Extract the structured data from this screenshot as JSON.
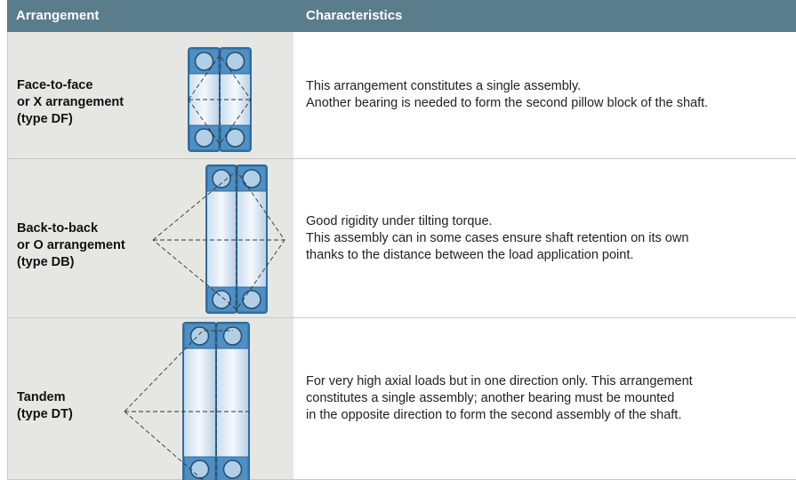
{
  "header": [
    "Arrangement",
    "Characteristics"
  ],
  "rows": [
    {
      "arrangement": [
        "Face-to-face",
        "or X arrangement",
        "(type DF)"
      ],
      "characteristics": [
        "This arrangement constitutes a single assembly.",
        "Another bearing is needed to form the second pillow block of the shaft."
      ]
    },
    {
      "arrangement": [
        "Back-to-back",
        "or O arrangement",
        "(type DB)"
      ],
      "characteristics": [
        "Good rigidity under tilting torque.",
        "This assembly can in some cases ensure shaft retention on its own",
        "thanks to the distance between the load application point."
      ]
    },
    {
      "arrangement": [
        "Tandem",
        "(type DT)"
      ],
      "characteristics": [
        "For very high axial loads but in one direction only. This arrangement",
        "constitutes a single assembly; another bearing must be mounted",
        "in the opposite direction to form the second assembly of the shaft."
      ]
    }
  ]
}
